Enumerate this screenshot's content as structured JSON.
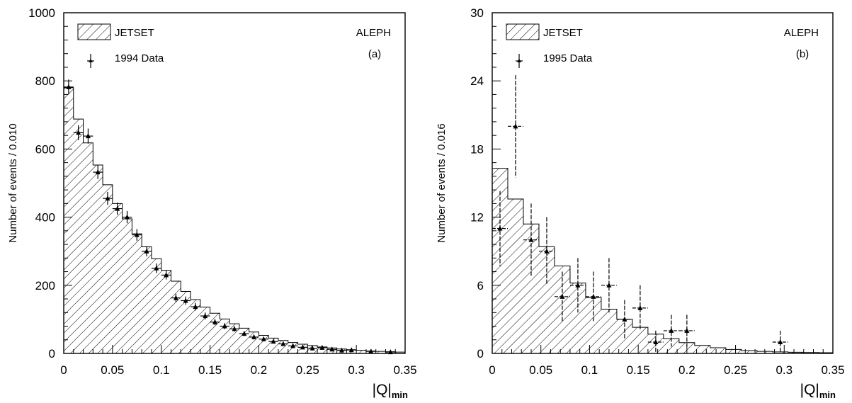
{
  "chart_data": [
    {
      "type": "histogram",
      "panel_label": "(a)",
      "experiment_label": "ALEPH",
      "xlabel": "|Q|",
      "xlabel_subscript": "min",
      "ylabel": "Number of events / 0.010",
      "xlim": [
        0,
        0.35
      ],
      "ylim": [
        0,
        1000
      ],
      "x_ticks": [
        "0",
        "0.05",
        "0.1",
        "0.15",
        "0.2",
        "0.25",
        "0.3",
        "0.35"
      ],
      "y_ticks": [
        "0",
        "200",
        "400",
        "600",
        "800",
        "1000"
      ],
      "legend": {
        "placement": "top-left",
        "entries": [
          {
            "label": "JETSET",
            "style": "hatched"
          },
          {
            "label": "1994 Data",
            "style": "points"
          }
        ]
      },
      "mc_series": {
        "name": "JETSET",
        "bin_width": 0.01,
        "bin_edges_start": 0,
        "values": [
          780,
          688,
          618,
          553,
          495,
          440,
          395,
          351,
          313,
          278,
          244,
          212,
          182,
          158,
          136,
          118,
          101,
          87,
          74,
          63,
          53,
          45,
          38,
          32,
          27,
          23,
          19,
          16,
          13,
          11,
          9,
          7,
          6,
          5,
          4
        ]
      },
      "data_series": {
        "name": "1994 Data",
        "points": [
          {
            "x": 0.005,
            "y": 782,
            "err": 22
          },
          {
            "x": 0.015,
            "y": 648,
            "err": 22
          },
          {
            "x": 0.025,
            "y": 638,
            "err": 22
          },
          {
            "x": 0.035,
            "y": 532,
            "err": 20
          },
          {
            "x": 0.045,
            "y": 455,
            "err": 19
          },
          {
            "x": 0.055,
            "y": 425,
            "err": 18
          },
          {
            "x": 0.065,
            "y": 400,
            "err": 18
          },
          {
            "x": 0.075,
            "y": 348,
            "err": 17
          },
          {
            "x": 0.085,
            "y": 300,
            "err": 15
          },
          {
            "x": 0.095,
            "y": 250,
            "err": 14
          },
          {
            "x": 0.105,
            "y": 230,
            "err": 13
          },
          {
            "x": 0.115,
            "y": 163,
            "err": 12
          },
          {
            "x": 0.125,
            "y": 155,
            "err": 12
          },
          {
            "x": 0.135,
            "y": 137,
            "err": 11
          },
          {
            "x": 0.145,
            "y": 110,
            "err": 10
          },
          {
            "x": 0.155,
            "y": 92,
            "err": 9
          },
          {
            "x": 0.165,
            "y": 80,
            "err": 9
          },
          {
            "x": 0.175,
            "y": 72,
            "err": 8
          },
          {
            "x": 0.185,
            "y": 58,
            "err": 7
          },
          {
            "x": 0.195,
            "y": 48,
            "err": 7
          },
          {
            "x": 0.205,
            "y": 42,
            "err": 6
          },
          {
            "x": 0.215,
            "y": 35,
            "err": 6
          },
          {
            "x": 0.225,
            "y": 28,
            "err": 5
          },
          {
            "x": 0.235,
            "y": 22,
            "err": 5
          },
          {
            "x": 0.245,
            "y": 18,
            "err": 4
          },
          {
            "x": 0.255,
            "y": 15,
            "err": 4
          },
          {
            "x": 0.265,
            "y": 17,
            "err": 4
          },
          {
            "x": 0.275,
            "y": 12,
            "err": 3
          },
          {
            "x": 0.285,
            "y": 9,
            "err": 3
          },
          {
            "x": 0.295,
            "y": 10,
            "err": 3
          },
          {
            "x": 0.315,
            "y": 6,
            "err": 2
          },
          {
            "x": 0.335,
            "y": 4,
            "err": 2
          }
        ]
      }
    },
    {
      "type": "histogram",
      "panel_label": "(b)",
      "experiment_label": "ALEPH",
      "xlabel": "|Q|",
      "xlabel_subscript": "min",
      "ylabel": "Number of events / 0.016",
      "xlim": [
        0,
        0.35
      ],
      "ylim": [
        0,
        30
      ],
      "x_ticks": [
        "0",
        "0.05",
        "0.1",
        "0.15",
        "0.2",
        "0.25",
        "0.3",
        "0.35"
      ],
      "y_ticks": [
        "0",
        "6",
        "12",
        "18",
        "24",
        "30"
      ],
      "legend": {
        "placement": "top-left",
        "entries": [
          {
            "label": "JETSET",
            "style": "hatched"
          },
          {
            "label": "1995 Data",
            "style": "points"
          }
        ]
      },
      "mc_series": {
        "name": "JETSET",
        "bin_width": 0.016,
        "bin_edges_start": 0,
        "values": [
          16.3,
          13.6,
          11.4,
          9.4,
          7.7,
          6.2,
          4.9,
          3.9,
          3.0,
          2.3,
          1.7,
          1.3,
          0.95,
          0.7,
          0.5,
          0.35,
          0.25,
          0.18,
          0.13,
          0.1,
          0.08,
          0.06
        ]
      },
      "data_series": {
        "name": "1995 Data",
        "points": [
          {
            "x": 0.008,
            "y": 11,
            "err": 3.3
          },
          {
            "x": 0.024,
            "y": 20,
            "err": 4.5
          },
          {
            "x": 0.04,
            "y": 10,
            "err": 3.2
          },
          {
            "x": 0.056,
            "y": 9,
            "err": 3.0
          },
          {
            "x": 0.072,
            "y": 5,
            "err": 2.2
          },
          {
            "x": 0.088,
            "y": 6,
            "err": 2.4
          },
          {
            "x": 0.104,
            "y": 5,
            "err": 2.2
          },
          {
            "x": 0.12,
            "y": 6,
            "err": 2.4
          },
          {
            "x": 0.136,
            "y": 3,
            "err": 1.7
          },
          {
            "x": 0.152,
            "y": 4,
            "err": 2.0
          },
          {
            "x": 0.168,
            "y": 1,
            "err": 1.0
          },
          {
            "x": 0.184,
            "y": 2,
            "err": 1.4
          },
          {
            "x": 0.2,
            "y": 2,
            "err": 1.4
          },
          {
            "x": 0.296,
            "y": 1,
            "err": 1.0
          }
        ]
      }
    }
  ]
}
